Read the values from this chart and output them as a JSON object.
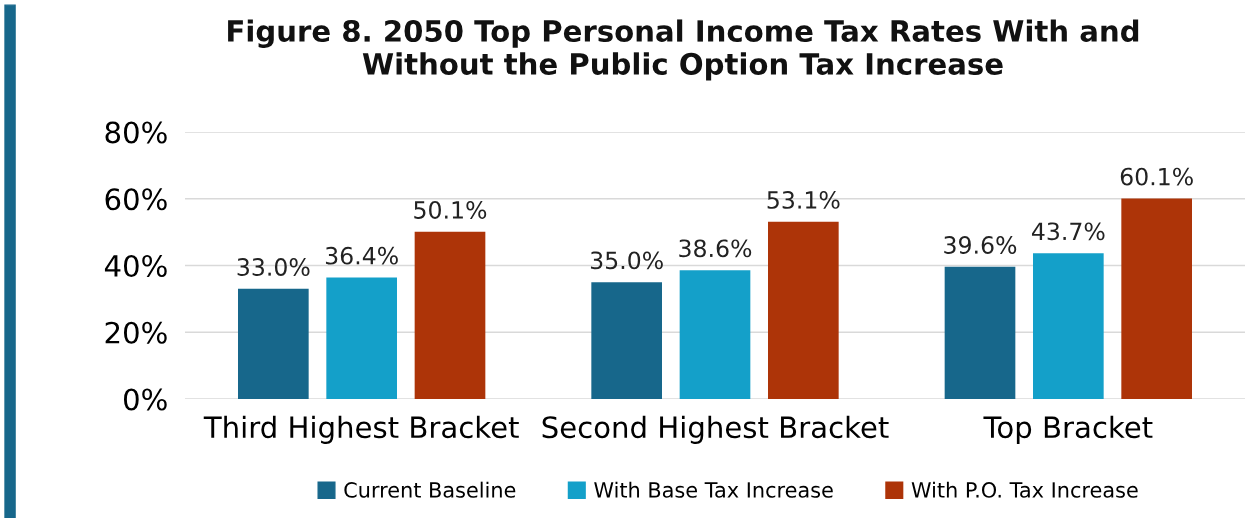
{
  "chart_data": {
    "type": "bar",
    "title": "Figure 8. 2050 Top Personal Income Tax Rates With and\nWithout the Public Option Tax Increase",
    "categories": [
      "Third Highest Bracket",
      "Second Highest Bracket",
      "Top Bracket"
    ],
    "series": [
      {
        "name": "Current Baseline",
        "color": "#17678b",
        "values": [
          33.0,
          35.0,
          39.6
        ],
        "value_labels": [
          "33.0%",
          "35.0%",
          "39.6%"
        ]
      },
      {
        "name": "With Base Tax Increase",
        "color": "#14a0c9",
        "values": [
          36.4,
          38.6,
          43.7
        ],
        "value_labels": [
          "36.4%",
          "38.6%",
          "43.7%"
        ]
      },
      {
        "name": "With P.O. Tax Increase",
        "color": "#ad3408",
        "values": [
          50.1,
          53.1,
          60.1
        ],
        "value_labels": [
          "50.1%",
          "53.1%",
          "60.1%"
        ]
      }
    ],
    "ylim": [
      0,
      80
    ],
    "yticks": [
      {
        "value": 0,
        "label": "0%"
      },
      {
        "value": 20,
        "label": "20%"
      },
      {
        "value": 40,
        "label": "40%"
      },
      {
        "value": 60,
        "label": "60%"
      },
      {
        "value": 80,
        "label": "80%"
      }
    ],
    "grid": "y",
    "legend": "bottom"
  }
}
